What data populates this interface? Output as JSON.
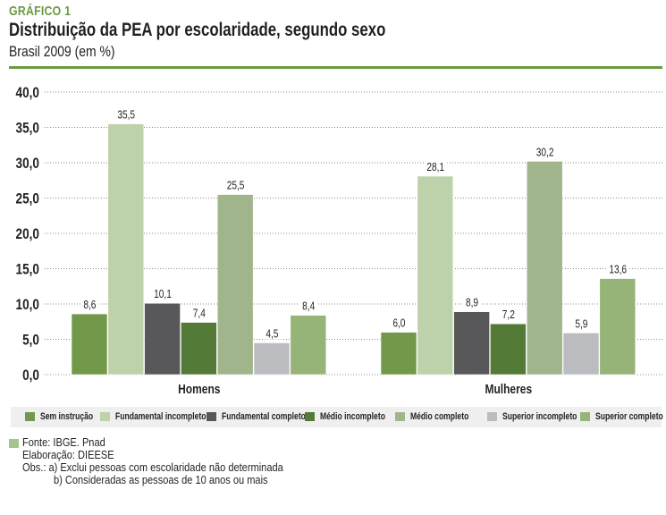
{
  "header": {
    "label": "GRÁFICO 1",
    "title": "Distribuição da PEA por escolaridade, segundo sexo",
    "subtitle": "Brasil 2009 (em %)",
    "accent_color": "#6a9a44"
  },
  "chart_data": {
    "type": "bar",
    "title": "Distribuição da PEA por escolaridade, segundo sexo",
    "subtitle": "Brasil 2009 (em %)",
    "xlabel": "",
    "ylabel": "",
    "ylim": [
      0,
      40
    ],
    "yticks": [
      "0,0",
      "5,0",
      "10,0",
      "15,0",
      "20,0",
      "25,0",
      "30,0",
      "35,0",
      "40,0"
    ],
    "ytick_values": [
      0,
      5,
      10,
      15,
      20,
      25,
      30,
      35,
      40
    ],
    "grid": true,
    "legend_position": "bottom",
    "categories": [
      "Homens",
      "Mulheres"
    ],
    "series": [
      {
        "name": "Sem instrução",
        "color": "#72984a",
        "values": [
          8.6,
          6.0
        ],
        "labels": [
          "8,6",
          "6,0"
        ]
      },
      {
        "name": "Fundamental incompleto",
        "color": "#bdd1aa",
        "values": [
          35.5,
          28.1
        ],
        "labels": [
          "35,5",
          "28,1"
        ]
      },
      {
        "name": "Fundamental completo",
        "color": "#58585a",
        "values": [
          10.1,
          8.9
        ],
        "labels": [
          "10,1",
          "8,9"
        ]
      },
      {
        "name": "Médio incompleto",
        "color": "#547a38",
        "values": [
          7.4,
          7.2
        ],
        "labels": [
          "7,4",
          "7,2"
        ]
      },
      {
        "name": "Médio completo",
        "color": "#a0b58c",
        "values": [
          25.5,
          30.2
        ],
        "labels": [
          "25,5",
          "30,2"
        ]
      },
      {
        "name": "Superior incompleto",
        "color": "#bbbcc0",
        "values": [
          4.5,
          5.9
        ],
        "labels": [
          "4,5",
          "5,9"
        ]
      },
      {
        "name": "Superior completo",
        "color": "#96b478",
        "values": [
          8.4,
          13.6
        ],
        "labels": [
          "8,4",
          "13,6"
        ]
      }
    ]
  },
  "notes": {
    "source": "Fonte: IBGE. Pnad",
    "elaboration": "Elaboração: DIEESE",
    "obs_a": "Obs.: a) Exclui pessoas com escolaridade não determinada",
    "obs_b": "b) Consideradas as pessoas de 10 anos ou mais"
  }
}
